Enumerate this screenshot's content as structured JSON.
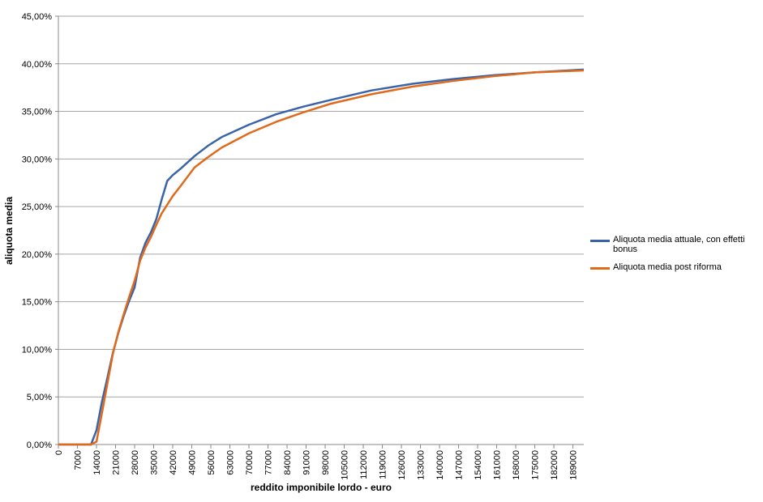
{
  "chart_data": {
    "type": "line",
    "x_label": "reddito imponibile lordo - euro",
    "y_label": "aliquota media",
    "x": [
      0,
      7000,
      12000,
      14000,
      16000,
      18000,
      20000,
      22000,
      24000,
      26000,
      28000,
      30000,
      32000,
      34000,
      36000,
      38000,
      40000,
      42000,
      45000,
      50000,
      55000,
      60000,
      70000,
      80000,
      90000,
      100000,
      115000,
      130000,
      145000,
      160000,
      175000,
      193000
    ],
    "series": [
      {
        "name": "Aliquota media attuale, con effetti bonus",
        "color": "#3a63a8",
        "values": [
          0,
          0,
          0,
          1.5,
          4.5,
          7,
          9.6,
          11.7,
          13.5,
          15.1,
          16.5,
          19.6,
          21.2,
          22.3,
          23.7,
          25.8,
          27.7,
          28.3,
          29,
          30.3,
          31.4,
          32.3,
          33.6,
          34.7,
          35.5,
          36.2,
          37.2,
          37.9,
          38.4,
          38.8,
          39.1,
          39.4
        ]
      },
      {
        "name": "Aliquota media post riforma",
        "color": "#e06a1b",
        "values": [
          0,
          0,
          0,
          0.3,
          3.3,
          6.4,
          9.5,
          11.8,
          13.7,
          15.5,
          17.2,
          19.3,
          20.7,
          21.8,
          23.1,
          24.3,
          25.2,
          26.1,
          27.2,
          29.1,
          30.2,
          31.2,
          32.7,
          33.9,
          34.9,
          35.8,
          36.8,
          37.6,
          38.2,
          38.7,
          39.1,
          39.3
        ]
      }
    ],
    "xlim": [
      0,
      193000
    ],
    "xticks": [
      0,
      7000,
      14000,
      21000,
      28000,
      35000,
      42000,
      49000,
      56000,
      63000,
      70000,
      77000,
      84000,
      91000,
      98000,
      105000,
      112000,
      119000,
      126000,
      133000,
      140000,
      147000,
      154000,
      161000,
      168000,
      175000,
      182000,
      189000
    ],
    "ylim": [
      0,
      45
    ],
    "yticks": [
      {
        "value": 0,
        "label": "0,00%"
      },
      {
        "value": 5,
        "label": "5,00%"
      },
      {
        "value": 10,
        "label": "10,00%"
      },
      {
        "value": 15,
        "label": "15,00%"
      },
      {
        "value": 20,
        "label": "20,00%"
      },
      {
        "value": 25,
        "label": "25,00%"
      },
      {
        "value": 30,
        "label": "30,00%"
      },
      {
        "value": 35,
        "label": "35,00%"
      },
      {
        "value": 40,
        "label": "40,00%"
      },
      {
        "value": 45,
        "label": "45,00%"
      }
    ],
    "grid": true,
    "legend": "right"
  }
}
